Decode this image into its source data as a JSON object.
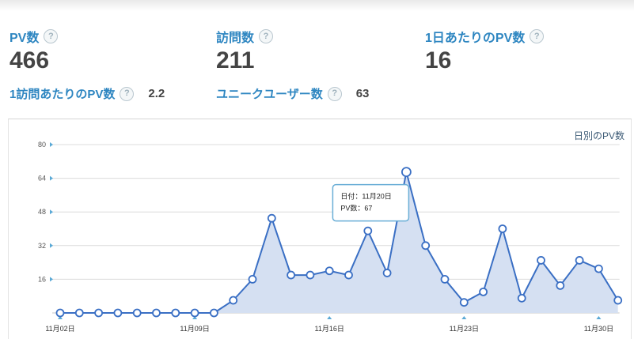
{
  "summary": {
    "pv": {
      "label": "PV数",
      "value": "466"
    },
    "visits": {
      "label": "訪問数",
      "value": "211"
    },
    "pv_per_day": {
      "label": "1日あたりのPV数",
      "value": "16"
    },
    "pv_per_visit": {
      "label": "1訪問あたりのPV数",
      "value": "2.2"
    },
    "unique_users": {
      "label": "ユニークユーザー数",
      "value": "63"
    }
  },
  "help_icon_glyph": "?",
  "chart_data": {
    "type": "area",
    "title": "日別のPV数",
    "y_ticks": [
      16,
      32,
      48,
      64,
      80
    ],
    "ylim": [
      0,
      80
    ],
    "x_tick_labels": [
      {
        "index": 0,
        "label": "11月02日"
      },
      {
        "index": 7,
        "label": "11月09日"
      },
      {
        "index": 14,
        "label": "11月16日"
      },
      {
        "index": 21,
        "label": "11月23日"
      },
      {
        "index": 28,
        "label": "11月30日"
      }
    ],
    "series": [
      {
        "values": [
          0,
          0,
          0,
          0,
          0,
          0,
          0,
          0,
          0,
          6,
          16,
          45,
          18,
          18,
          20,
          18,
          39,
          19,
          67,
          32,
          16,
          5,
          10,
          40,
          7,
          25,
          13,
          25,
          21,
          6
        ],
        "color": "#3a6fc4",
        "fill": "#d5e0f2"
      }
    ],
    "tooltip": {
      "point_index": 18,
      "line1": "日付：11月20日",
      "line2": "PV数：67"
    },
    "grid": true
  }
}
